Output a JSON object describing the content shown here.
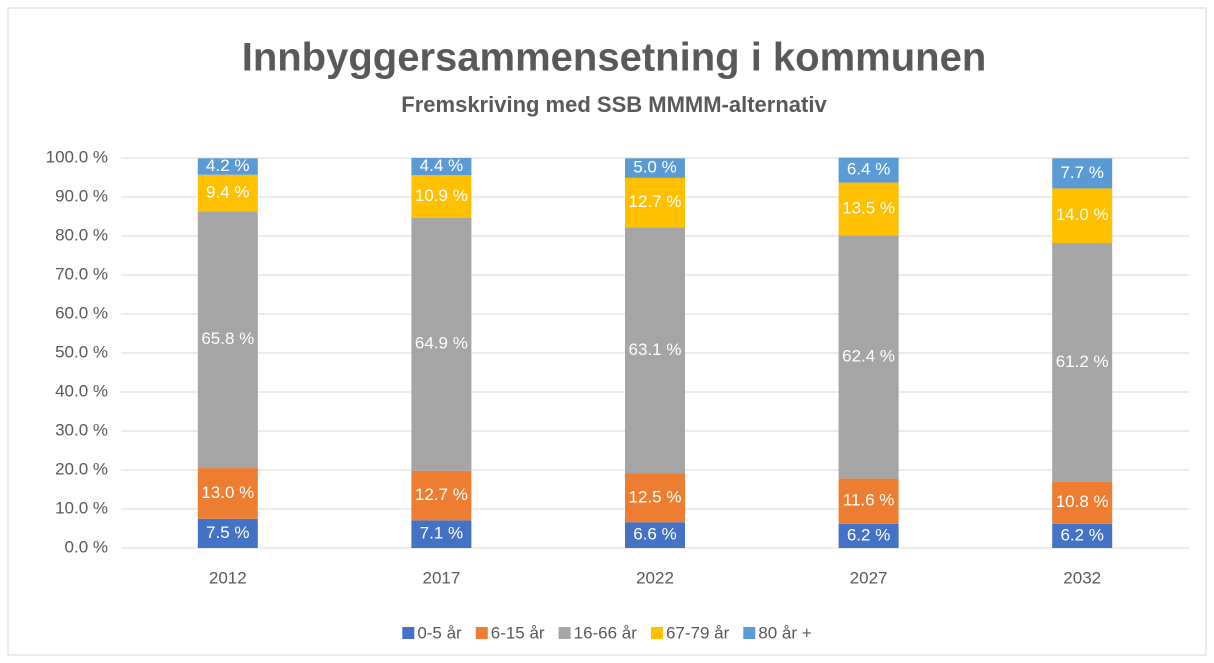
{
  "chart_data": {
    "type": "stacked_bar",
    "title": "Innbyggersammensetning i kommunen",
    "subtitle": "Fremskriving med SSB MMMM-alternativ",
    "categories": [
      "2012",
      "2017",
      "2022",
      "2027",
      "2032"
    ],
    "series": [
      {
        "name": "0-5 år",
        "color": "#4472c4",
        "values": [
          7.5,
          7.1,
          6.6,
          6.2,
          6.2
        ],
        "value_labels": [
          "7.5 %",
          "7.1 %",
          "6.6 %",
          "6.2 %",
          "6.2 %"
        ]
      },
      {
        "name": "6-15 år",
        "color": "#ed7d31",
        "values": [
          13.0,
          12.7,
          12.5,
          11.6,
          10.8
        ],
        "value_labels": [
          "13.0 %",
          "12.7 %",
          "12.5 %",
          "11.6 %",
          "10.8 %"
        ]
      },
      {
        "name": "16-66 år",
        "color": "#a5a5a5",
        "values": [
          65.8,
          64.9,
          63.1,
          62.4,
          61.2
        ],
        "value_labels": [
          "65.8 %",
          "64.9 %",
          "63.1 %",
          "62.4 %",
          "61.2 %"
        ]
      },
      {
        "name": "67-79 år",
        "color": "#ffc000",
        "values": [
          9.4,
          10.9,
          12.7,
          13.5,
          14.0
        ],
        "value_labels": [
          "9.4 %",
          "10.9 %",
          "12.7 %",
          "13.5 %",
          "14.0 %"
        ]
      },
      {
        "name": "80 år +",
        "color": "#5b9bd5",
        "values": [
          4.2,
          4.4,
          5.0,
          6.4,
          7.7
        ],
        "value_labels": [
          "4.2 %",
          "4.4 %",
          "5.0 %",
          "6.4 %",
          "7.7 %"
        ]
      }
    ],
    "ylim": [
      0,
      100
    ],
    "yticks": [
      {
        "value": 0,
        "label": "0.0 %"
      },
      {
        "value": 10,
        "label": "10.0 %"
      },
      {
        "value": 20,
        "label": "20.0 %"
      },
      {
        "value": 30,
        "label": "30.0 %"
      },
      {
        "value": 40,
        "label": "40.0 %"
      },
      {
        "value": 50,
        "label": "50.0 %"
      },
      {
        "value": 60,
        "label": "60.0 %"
      },
      {
        "value": 70,
        "label": "70.0 %"
      },
      {
        "value": 80,
        "label": "80.0 %"
      },
      {
        "value": 90,
        "label": "90.0 %"
      },
      {
        "value": 100,
        "label": "100.0 %"
      }
    ],
    "grid": true,
    "legend": "bottom"
  }
}
